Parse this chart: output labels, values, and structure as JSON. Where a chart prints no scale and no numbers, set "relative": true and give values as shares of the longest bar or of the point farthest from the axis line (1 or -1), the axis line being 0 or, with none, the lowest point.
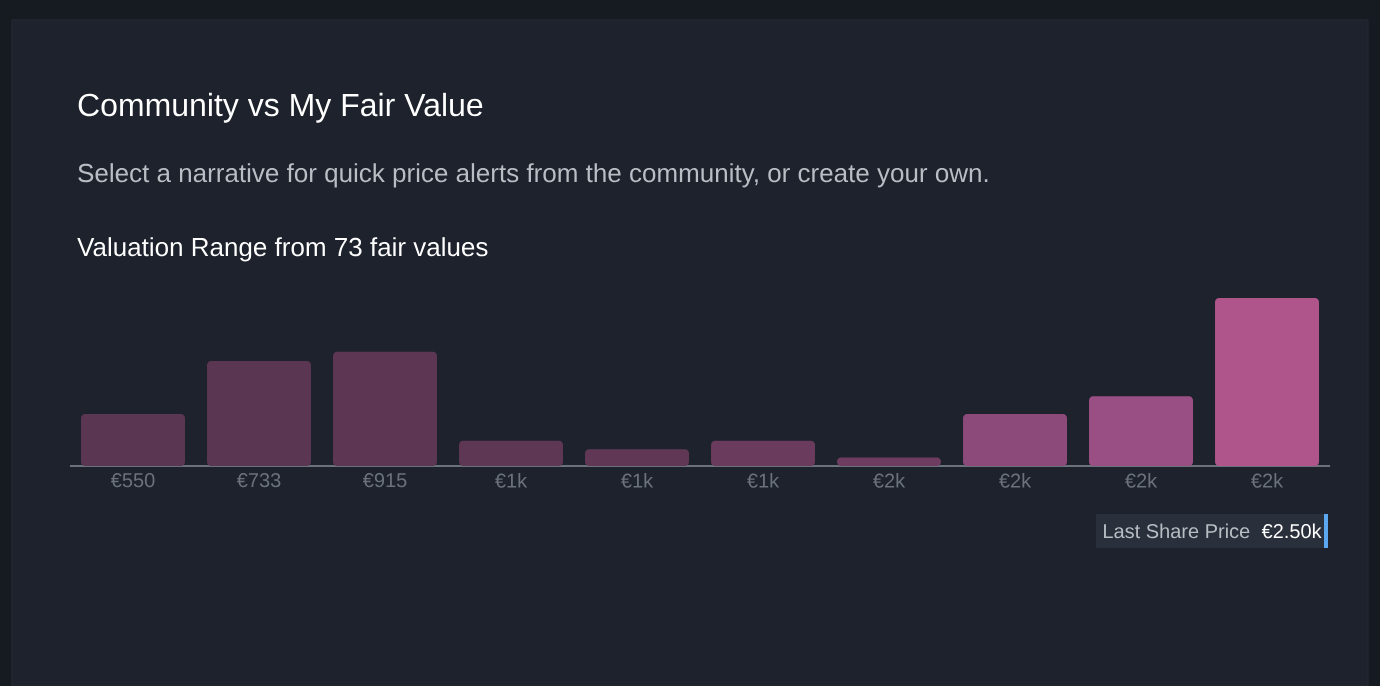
{
  "chart_data": {
    "type": "bar",
    "title": "Community vs My Fair Value",
    "subtitle": "Select a narrative for quick price alerts from the community, or create your own.",
    "annotations": [
      "Valuation Range from 73 fair values",
      "Last Share Price",
      "€2.50k"
    ],
    "categories": [
      "€550",
      "€733",
      "€915",
      "€1k",
      "€1k",
      "€1k",
      "€2k",
      "€2k",
      "€2k",
      "€2k"
    ],
    "relative": true,
    "values": [
      0.31,
      0.625,
      0.68,
      0.15,
      0.1,
      0.15,
      0.05,
      0.31,
      0.415,
      1
    ],
    "colors": [
      "#5a3652",
      "#5a3652",
      "#5c3652",
      "#5e3754",
      "#603856",
      "#6a3b5c",
      "#6e3c60",
      "#8c4a7a",
      "#9a4f84",
      "#b0558c"
    ]
  }
}
